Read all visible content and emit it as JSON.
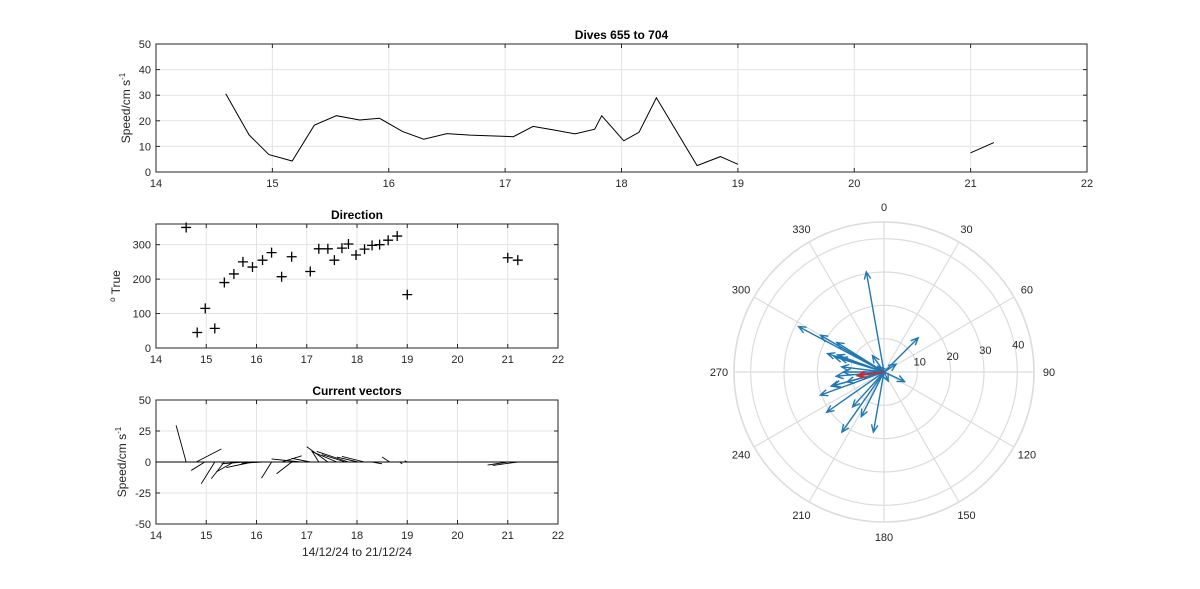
{
  "chart_data": [
    {
      "type": "line",
      "title": "Dives 655 to 704",
      "ylabel": "Speed/cm s",
      "ylabel_sup": "-1",
      "xlim": [
        14,
        22
      ],
      "ylim": [
        0,
        50
      ],
      "xticks": [
        14,
        15,
        16,
        17,
        18,
        19,
        20,
        21,
        22
      ],
      "yticks": [
        0,
        10,
        20,
        30,
        40,
        50
      ],
      "grid": true,
      "segments": [
        [
          [
            14.6,
            30.5
          ],
          [
            14.8,
            14.5
          ],
          [
            14.97,
            6.8
          ],
          [
            15.17,
            4.3
          ],
          [
            15.36,
            18.3
          ],
          [
            15.55,
            22
          ],
          [
            15.75,
            20.3
          ],
          [
            15.92,
            21
          ],
          [
            16.12,
            15.8
          ],
          [
            16.3,
            12.8
          ],
          [
            16.5,
            15
          ],
          [
            16.7,
            14.4
          ],
          [
            16.88,
            14.1
          ],
          [
            17.07,
            13.8
          ],
          [
            17.24,
            17.8
          ],
          [
            17.42,
            16.4
          ],
          [
            17.6,
            14.9
          ],
          [
            17.77,
            16.7
          ],
          [
            17.83,
            22
          ],
          [
            18.02,
            12.2
          ],
          [
            18.15,
            15.5
          ],
          [
            18.3,
            29
          ],
          [
            18.65,
            2.5
          ],
          [
            18.85,
            6
          ],
          [
            19.0,
            3
          ]
        ],
        [
          [
            21.0,
            7.5
          ],
          [
            21.2,
            11.5
          ]
        ]
      ]
    },
    {
      "type": "scatter",
      "title": "Direction",
      "ylabel": "True",
      "ylabel_prefix": "o",
      "xlim": [
        14,
        22
      ],
      "ylim": [
        0,
        360
      ],
      "xticks": [
        14,
        15,
        16,
        17,
        18,
        19,
        20,
        21,
        22
      ],
      "yticks": [
        0,
        100,
        200,
        300
      ],
      "grid": true,
      "marker": "+",
      "x": [
        14.6,
        14.82,
        14.98,
        15.17,
        15.36,
        15.55,
        15.73,
        15.92,
        16.12,
        16.3,
        16.5,
        16.7,
        17.07,
        17.24,
        17.42,
        17.55,
        17.7,
        17.83,
        17.98,
        18.15,
        18.3,
        18.45,
        18.62,
        18.8,
        19.0,
        21.0,
        21.2
      ],
      "y": [
        350,
        45,
        115,
        57,
        190,
        215,
        250,
        235,
        255,
        277,
        207,
        265,
        222,
        288,
        288,
        255,
        290,
        302,
        270,
        287,
        298,
        300,
        313,
        325,
        155,
        262,
        255
      ]
    },
    {
      "type": "line",
      "title": "Current vectors",
      "ylabel": "Speed/cm s",
      "ylabel_sup": "-1",
      "xlabel": "14/12/24 to 21/12/24",
      "xlim": [
        14,
        22
      ],
      "ylim": [
        -50,
        50
      ],
      "xticks": [
        14,
        15,
        16,
        17,
        18,
        19,
        20,
        21,
        22
      ],
      "yticks": [
        -50,
        -25,
        0,
        25,
        50
      ],
      "grid": true,
      "stick_origin_y": 0,
      "sticks": [
        [
          14.6,
          0,
          14.4,
          29.5
        ],
        [
          14.8,
          0,
          15.3,
          10.5
        ],
        [
          14.97,
          0,
          14.7,
          -6.8
        ],
        [
          15.17,
          0,
          14.9,
          -17.5
        ],
        [
          15.36,
          0,
          15.1,
          -13.5
        ],
        [
          15.55,
          0,
          15.2,
          -8
        ],
        [
          15.75,
          0,
          15.3,
          -1.5
        ],
        [
          15.92,
          0,
          15.4,
          -4.5
        ],
        [
          16.12,
          0,
          15.7,
          -1
        ],
        [
          16.3,
          0,
          16.1,
          -13
        ],
        [
          16.5,
          0,
          16.9,
          5
        ],
        [
          16.7,
          0,
          16.4,
          -9.5
        ],
        [
          16.88,
          0,
          16.3,
          2.5
        ],
        [
          17.07,
          0,
          16.7,
          3
        ],
        [
          17.24,
          0,
          17.1,
          9
        ],
        [
          17.42,
          0,
          17.0,
          12.3
        ],
        [
          17.6,
          0,
          17.1,
          8.4
        ],
        [
          17.77,
          0,
          17.3,
          6
        ],
        [
          17.83,
          0,
          17.2,
          8.5
        ],
        [
          18.02,
          0,
          17.6,
          4
        ],
        [
          18.15,
          0,
          17.7,
          4.5
        ],
        [
          18.3,
          0,
          18.5,
          -1.5
        ],
        [
          18.65,
          0,
          18.5,
          4
        ],
        [
          18.85,
          0,
          18.9,
          -1.5
        ],
        [
          19.0,
          0,
          18.95,
          1
        ],
        [
          21.0,
          0,
          20.6,
          -2.5
        ],
        [
          21.2,
          0,
          20.7,
          -2.8
        ]
      ]
    },
    {
      "type": "polar",
      "theta_ticks": [
        0,
        30,
        60,
        90,
        120,
        150,
        180,
        210,
        240,
        270,
        300,
        330
      ],
      "r_ticks": [
        10,
        20,
        30,
        40
      ],
      "rlim": [
        0,
        45
      ],
      "vectors": [
        {
          "dir": 350,
          "speed": 30.5
        },
        {
          "dir": 45,
          "speed": 14.5
        },
        {
          "dir": 115,
          "speed": 6.8
        },
        {
          "dir": 57,
          "speed": 4.3
        },
        {
          "dir": 190,
          "speed": 18.3
        },
        {
          "dir": 215,
          "speed": 22
        },
        {
          "dir": 250,
          "speed": 20.3
        },
        {
          "dir": 235,
          "speed": 21
        },
        {
          "dir": 255,
          "speed": 15.8
        },
        {
          "dir": 277,
          "speed": 12.8
        },
        {
          "dir": 207,
          "speed": 15
        },
        {
          "dir": 265,
          "speed": 14.4
        },
        {
          "dir": 222,
          "speed": 14.1
        },
        {
          "dir": 288,
          "speed": 13.8
        },
        {
          "dir": 288,
          "speed": 17.8
        },
        {
          "dir": 255,
          "speed": 16.4
        },
        {
          "dir": 290,
          "speed": 14.9
        },
        {
          "dir": 302,
          "speed": 16.7
        },
        {
          "dir": 300,
          "speed": 22
        },
        {
          "dir": 270,
          "speed": 12.2
        },
        {
          "dir": 287,
          "speed": 15.5
        },
        {
          "dir": 298,
          "speed": 29
        },
        {
          "dir": 313,
          "speed": 2.5
        },
        {
          "dir": 325,
          "speed": 6
        },
        {
          "dir": 155,
          "speed": 3
        },
        {
          "dir": 262,
          "speed": 7.5
        },
        {
          "dir": 255,
          "speed": 11.5
        }
      ],
      "mean_vector": {
        "dir": 262,
        "speed": 8
      },
      "vector_color": "#1f77b4",
      "mean_color": "#d62728"
    }
  ]
}
